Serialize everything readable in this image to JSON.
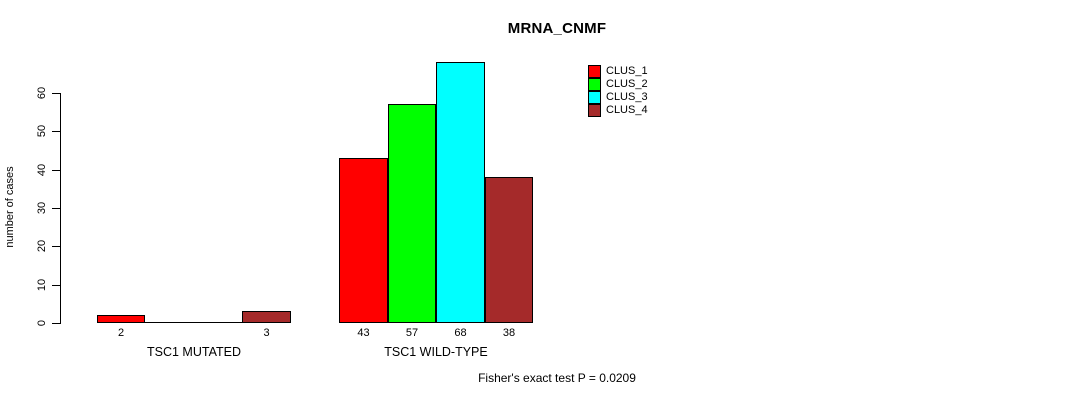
{
  "title": "MRNA_CNMF",
  "annotation": "Fisher's exact test P = 0.0209",
  "chart_data": {
    "type": "bar",
    "title": "MRNA_CNMF",
    "xlabel": "",
    "ylabel": "number of cases",
    "ylim": [
      0,
      68
    ],
    "yticks": [
      0,
      10,
      20,
      30,
      40,
      50,
      60
    ],
    "grid": false,
    "legend_position": "top-right",
    "categories": [
      "TSC1 MUTATED",
      "TSC1 WILD-TYPE"
    ],
    "series": [
      {
        "name": "CLUS_1",
        "color": "#ff0000",
        "values": [
          2,
          43
        ]
      },
      {
        "name": "CLUS_2",
        "color": "#00ff00",
        "values": [
          0,
          57
        ]
      },
      {
        "name": "CLUS_3",
        "color": "#00ffff",
        "values": [
          0,
          68
        ]
      },
      {
        "name": "CLUS_4",
        "color": "#a52a2a",
        "values": [
          3,
          38
        ]
      }
    ],
    "bar_value_labels": [
      [
        "2",
        "",
        "",
        "3"
      ],
      [
        "43",
        "57",
        "68",
        "38"
      ]
    ],
    "annotation": "Fisher's exact test P = 0.0209"
  }
}
